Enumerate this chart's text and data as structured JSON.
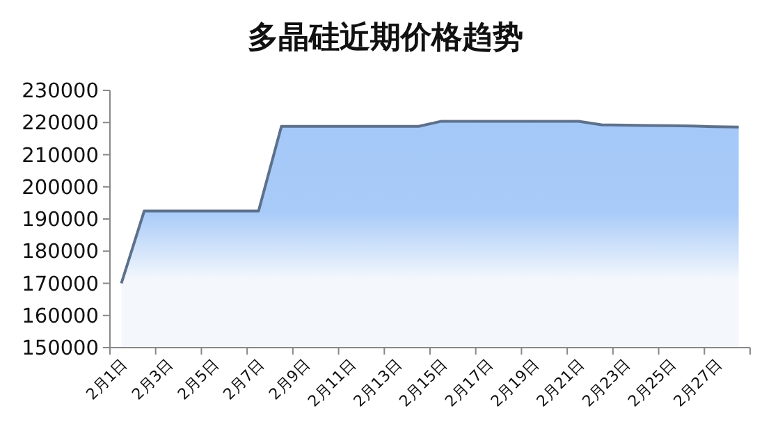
{
  "chart_data": {
    "type": "area",
    "title": "多晶硅近期价格趋势",
    "categories": [
      "2月1日",
      null,
      "2月3日",
      null,
      "2月5日",
      null,
      "2月7日",
      null,
      "2月9日",
      null,
      "2月11日",
      null,
      "2月13日",
      null,
      "2月15日",
      null,
      "2月17日",
      null,
      "2月19日",
      null,
      "2月21日",
      null,
      "2月23日",
      null,
      "2月25日",
      null,
      "2月27日",
      null
    ],
    "series": [
      {
        "color": "#a4c8f8",
        "values": [
          170000,
          192500,
          192500,
          192500,
          192500,
          192500,
          192500,
          218800,
          218800,
          218800,
          218800,
          218800,
          218800,
          218800,
          220400,
          220400,
          220400,
          220400,
          220400,
          220400,
          220400,
          219300,
          219200,
          219100,
          219000,
          218900,
          218700,
          218600
        ]
      }
    ],
    "ylim": [
      150000,
      230000
    ],
    "yticks": [
      150000,
      160000,
      170000,
      180000,
      190000,
      200000,
      210000,
      220000,
      230000
    ],
    "marker": "none",
    "line_style": "solid"
  }
}
